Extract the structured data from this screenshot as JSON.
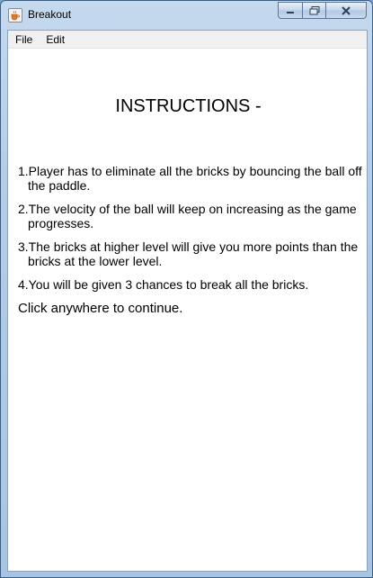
{
  "window": {
    "title": "Breakout",
    "icon": "java-coffee-cup-icon",
    "controls": [
      "minimize-icon",
      "maximize-icon",
      "close-icon"
    ]
  },
  "menubar": {
    "items": [
      "File",
      "Edit"
    ]
  },
  "main": {
    "heading": "INSTRUCTIONS -",
    "instructions": [
      "1.Player has to eliminate all the bricks by bouncing the ball off the paddle.",
      "2.The velocity of the ball will keep on increasing as the game progresses.",
      "3.The bricks at higher level will give you more points than the bricks at the lower level.",
      "4.You will be given 3 chances to break all the bricks."
    ],
    "continue_prompt": "Click anywhere to continue."
  },
  "colors": {
    "titlebar": "#b6cde6",
    "client_bg": "#ffffff",
    "menubar_bg": "#f0f0f0",
    "close_glyph": "#2b2b2b"
  }
}
